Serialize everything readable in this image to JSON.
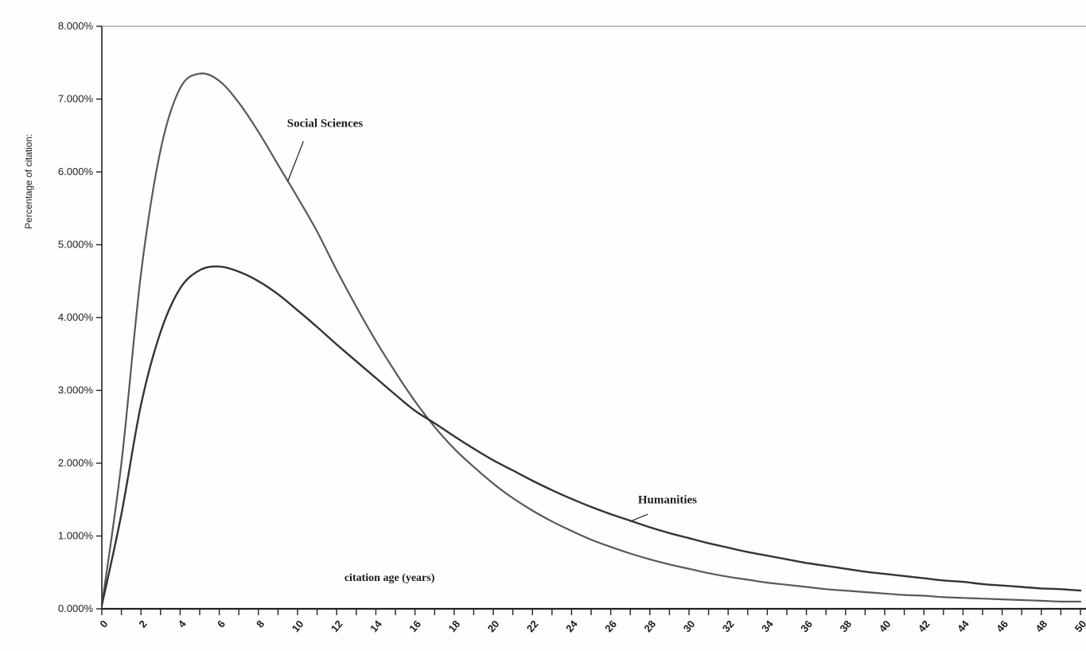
{
  "page": {
    "background": "#fefefe"
  },
  "chart_data": {
    "type": "line",
    "title": "",
    "xlabel": "citation age (years)",
    "ylabel": "Percentage of citation:",
    "xlim": [
      0,
      50
    ],
    "ylim": [
      0,
      8
    ],
    "grid": "top-border-only",
    "legend_position": "inline-annotations",
    "x_minor_tick_step": 1,
    "x_label_step": 2,
    "y_ticks": [
      {
        "value": 0,
        "label": "0.000%"
      },
      {
        "value": 1,
        "label": "1.000%"
      },
      {
        "value": 2,
        "label": "2.000%"
      },
      {
        "value": 3,
        "label": "3.000%"
      },
      {
        "value": 4,
        "label": "4.000%"
      },
      {
        "value": 5,
        "label": "5.000%"
      },
      {
        "value": 6,
        "label": "6.000%"
      },
      {
        "value": 7,
        "label": "7.000%"
      },
      {
        "value": 8,
        "label": "8.000%"
      }
    ],
    "series": [
      {
        "name": "Social Sciences",
        "color": "#585858",
        "stroke_width": 2.2,
        "x_start": 0,
        "x_step": 1,
        "values": [
          0.05,
          2.0,
          4.6,
          6.3,
          7.15,
          7.35,
          7.25,
          6.95,
          6.55,
          6.1,
          5.65,
          5.18,
          4.65,
          4.15,
          3.68,
          3.25,
          2.85,
          2.5,
          2.2,
          1.95,
          1.72,
          1.52,
          1.35,
          1.2,
          1.07,
          0.95,
          0.85,
          0.76,
          0.68,
          0.61,
          0.55,
          0.49,
          0.44,
          0.4,
          0.36,
          0.33,
          0.3,
          0.27,
          0.25,
          0.23,
          0.21,
          0.19,
          0.18,
          0.16,
          0.15,
          0.14,
          0.13,
          0.12,
          0.11,
          0.1,
          0.1
        ]
      },
      {
        "name": "Humanities",
        "color": "#333333",
        "stroke_width": 2.4,
        "x_start": 0,
        "x_step": 1,
        "values": [
          0.05,
          1.3,
          2.8,
          3.8,
          4.4,
          4.65,
          4.7,
          4.63,
          4.5,
          4.32,
          4.1,
          3.87,
          3.63,
          3.4,
          3.17,
          2.94,
          2.72,
          2.55,
          2.37,
          2.2,
          2.04,
          1.9,
          1.76,
          1.63,
          1.51,
          1.4,
          1.3,
          1.21,
          1.12,
          1.04,
          0.97,
          0.9,
          0.84,
          0.78,
          0.73,
          0.68,
          0.63,
          0.59,
          0.55,
          0.51,
          0.48,
          0.45,
          0.42,
          0.39,
          0.37,
          0.34,
          0.32,
          0.3,
          0.28,
          0.27,
          0.25
        ]
      }
    ],
    "annotations": [
      {
        "text": "Social Sciences",
        "x": 11.4,
        "y": 6.62,
        "leader": {
          "x1": 10.3,
          "y1": 6.42,
          "x2": 9.5,
          "y2": 5.87
        }
      },
      {
        "text": "Humanities",
        "x": 28.9,
        "y": 1.45,
        "leader": {
          "x1": 27.9,
          "y1": 1.3,
          "x2": 27.0,
          "y2": 1.2
        }
      }
    ],
    "inner_labels": [
      {
        "text": "citation age (years)",
        "x": 14.7,
        "y": 0.38
      }
    ],
    "axis_color": "#222222",
    "top_border_color": "#9a9a9a"
  }
}
